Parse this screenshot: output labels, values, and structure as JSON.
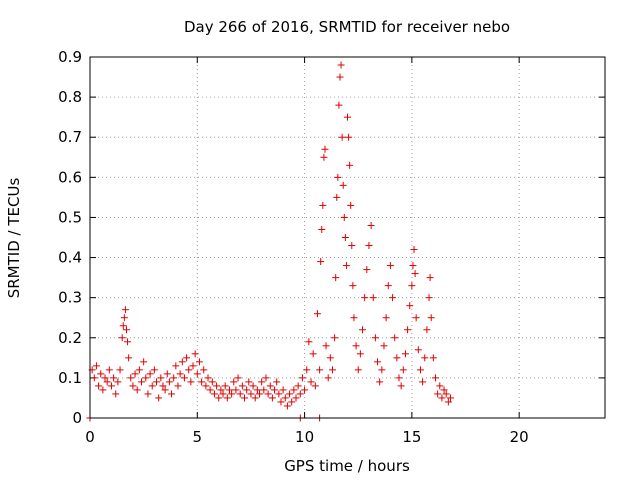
{
  "chart_data": {
    "type": "scatter",
    "title": "Day 266 of 2016, SRMTID for receiver nebo",
    "xlabel": "GPS time / hours",
    "ylabel": "SRMTID / TECUs",
    "xlim": [
      0,
      24
    ],
    "ylim": [
      0,
      0.9
    ],
    "xticks": [
      "0",
      "5",
      "10",
      "15",
      "20"
    ],
    "yticks": [
      "0",
      "0.1",
      "0.2",
      "0.3",
      "0.4",
      "0.5",
      "0.6",
      "0.7",
      "0.8",
      "0.9"
    ],
    "grid": true,
    "marker": "+",
    "color": "#e00000",
    "series": [
      {
        "name": "SRMTID",
        "points": [
          [
            0.0,
            0.0
          ],
          [
            0.1,
            0.12
          ],
          [
            0.2,
            0.1
          ],
          [
            0.3,
            0.13
          ],
          [
            0.4,
            0.08
          ],
          [
            0.5,
            0.11
          ],
          [
            0.6,
            0.07
          ],
          [
            0.7,
            0.1
          ],
          [
            0.8,
            0.09
          ],
          [
            0.9,
            0.12
          ],
          [
            1.0,
            0.08
          ],
          [
            1.1,
            0.1
          ],
          [
            1.2,
            0.06
          ],
          [
            1.3,
            0.09
          ],
          [
            1.4,
            0.12
          ],
          [
            1.5,
            0.2
          ],
          [
            1.55,
            0.23
          ],
          [
            1.6,
            0.25
          ],
          [
            1.65,
            0.27
          ],
          [
            1.7,
            0.22
          ],
          [
            1.75,
            0.19
          ],
          [
            1.8,
            0.15
          ],
          [
            1.9,
            0.1
          ],
          [
            2.0,
            0.08
          ],
          [
            2.1,
            0.11
          ],
          [
            2.2,
            0.07
          ],
          [
            2.3,
            0.12
          ],
          [
            2.4,
            0.09
          ],
          [
            2.5,
            0.14
          ],
          [
            2.6,
            0.1
          ],
          [
            2.7,
            0.06
          ],
          [
            2.8,
            0.11
          ],
          [
            2.9,
            0.08
          ],
          [
            3.0,
            0.12
          ],
          [
            3.1,
            0.09
          ],
          [
            3.2,
            0.05
          ],
          [
            3.3,
            0.1
          ],
          [
            3.4,
            0.08
          ],
          [
            3.5,
            0.07
          ],
          [
            3.6,
            0.11
          ],
          [
            3.7,
            0.09
          ],
          [
            3.8,
            0.06
          ],
          [
            3.9,
            0.1
          ],
          [
            4.0,
            0.13
          ],
          [
            4.1,
            0.08
          ],
          [
            4.2,
            0.11
          ],
          [
            4.3,
            0.14
          ],
          [
            4.4,
            0.1
          ],
          [
            4.5,
            0.15
          ],
          [
            4.6,
            0.12
          ],
          [
            4.7,
            0.09
          ],
          [
            4.8,
            0.13
          ],
          [
            4.9,
            0.16
          ],
          [
            5.0,
            0.11
          ],
          [
            5.1,
            0.14
          ],
          [
            5.2,
            0.09
          ],
          [
            5.3,
            0.12
          ],
          [
            5.4,
            0.08
          ],
          [
            5.5,
            0.1
          ],
          [
            5.6,
            0.07
          ],
          [
            5.7,
            0.09
          ],
          [
            5.8,
            0.06
          ],
          [
            5.9,
            0.08
          ],
          [
            6.0,
            0.05
          ],
          [
            6.1,
            0.07
          ],
          [
            6.2,
            0.06
          ],
          [
            6.3,
            0.08
          ],
          [
            6.4,
            0.05
          ],
          [
            6.5,
            0.07
          ],
          [
            6.6,
            0.06
          ],
          [
            6.7,
            0.09
          ],
          [
            6.8,
            0.07
          ],
          [
            6.9,
            0.1
          ],
          [
            7.0,
            0.06
          ],
          [
            7.1,
            0.08
          ],
          [
            7.2,
            0.05
          ],
          [
            7.3,
            0.07
          ],
          [
            7.4,
            0.09
          ],
          [
            7.5,
            0.06
          ],
          [
            7.6,
            0.08
          ],
          [
            7.7,
            0.05
          ],
          [
            7.8,
            0.07
          ],
          [
            7.9,
            0.06
          ],
          [
            8.0,
            0.09
          ],
          [
            8.1,
            0.07
          ],
          [
            8.2,
            0.1
          ],
          [
            8.3,
            0.06
          ],
          [
            8.4,
            0.08
          ],
          [
            8.5,
            0.05
          ],
          [
            8.6,
            0.07
          ],
          [
            8.7,
            0.09
          ],
          [
            8.8,
            0.06
          ],
          [
            8.9,
            0.04
          ],
          [
            9.0,
            0.07
          ],
          [
            9.1,
            0.05
          ],
          [
            9.2,
            0.03
          ],
          [
            9.3,
            0.06
          ],
          [
            9.4,
            0.04
          ],
          [
            9.5,
            0.07
          ],
          [
            9.6,
            0.05
          ],
          [
            9.7,
            0.08
          ],
          [
            9.8,
            0.06
          ],
          [
            9.9,
            0.1
          ],
          [
            10.0,
            0.07
          ],
          [
            10.1,
            0.12
          ],
          [
            10.2,
            0.19
          ],
          [
            10.3,
            0.09
          ],
          [
            10.4,
            0.16
          ],
          [
            10.5,
            0.08
          ],
          [
            10.6,
            0.26
          ],
          [
            10.7,
            0.12
          ],
          [
            10.75,
            0.39
          ],
          [
            10.8,
            0.47
          ],
          [
            10.85,
            0.53
          ],
          [
            10.9,
            0.65
          ],
          [
            10.95,
            0.67
          ],
          [
            11.0,
            0.18
          ],
          [
            11.1,
            0.1
          ],
          [
            11.2,
            0.15
          ],
          [
            11.3,
            0.12
          ],
          [
            11.4,
            0.2
          ],
          [
            11.45,
            0.35
          ],
          [
            11.5,
            0.55
          ],
          [
            11.55,
            0.6
          ],
          [
            11.6,
            0.78
          ],
          [
            11.65,
            0.85
          ],
          [
            11.7,
            0.88
          ],
          [
            11.75,
            0.7
          ],
          [
            11.8,
            0.58
          ],
          [
            11.85,
            0.5
          ],
          [
            11.9,
            0.45
          ],
          [
            11.95,
            0.38
          ],
          [
            12.0,
            0.75
          ],
          [
            12.05,
            0.7
          ],
          [
            12.1,
            0.63
          ],
          [
            12.15,
            0.53
          ],
          [
            12.2,
            0.43
          ],
          [
            12.25,
            0.33
          ],
          [
            12.3,
            0.25
          ],
          [
            12.4,
            0.18
          ],
          [
            12.5,
            0.12
          ],
          [
            12.6,
            0.16
          ],
          [
            12.7,
            0.22
          ],
          [
            12.8,
            0.3
          ],
          [
            12.9,
            0.37
          ],
          [
            13.0,
            0.43
          ],
          [
            13.1,
            0.48
          ],
          [
            13.2,
            0.3
          ],
          [
            13.3,
            0.2
          ],
          [
            13.4,
            0.14
          ],
          [
            13.5,
            0.09
          ],
          [
            13.6,
            0.12
          ],
          [
            13.7,
            0.18
          ],
          [
            13.8,
            0.25
          ],
          [
            13.9,
            0.33
          ],
          [
            14.0,
            0.38
          ],
          [
            14.1,
            0.3
          ],
          [
            14.2,
            0.2
          ],
          [
            14.3,
            0.15
          ],
          [
            14.4,
            0.1
          ],
          [
            14.5,
            0.08
          ],
          [
            14.6,
            0.12
          ],
          [
            14.7,
            0.16
          ],
          [
            14.8,
            0.22
          ],
          [
            14.9,
            0.28
          ],
          [
            15.0,
            0.33
          ],
          [
            15.05,
            0.38
          ],
          [
            15.1,
            0.42
          ],
          [
            15.15,
            0.36
          ],
          [
            15.2,
            0.25
          ],
          [
            15.3,
            0.17
          ],
          [
            15.4,
            0.12
          ],
          [
            15.5,
            0.09
          ],
          [
            15.6,
            0.15
          ],
          [
            15.7,
            0.22
          ],
          [
            15.8,
            0.3
          ],
          [
            15.85,
            0.35
          ],
          [
            15.9,
            0.25
          ],
          [
            16.0,
            0.15
          ],
          [
            16.1,
            0.1
          ],
          [
            16.2,
            0.06
          ],
          [
            16.3,
            0.08
          ],
          [
            16.4,
            0.05
          ],
          [
            16.5,
            0.07
          ],
          [
            16.6,
            0.06
          ],
          [
            16.7,
            0.04
          ],
          [
            16.8,
            0.05
          ],
          [
            9.8,
            0.0
          ],
          [
            10.7,
            0.0
          ]
        ]
      }
    ]
  }
}
